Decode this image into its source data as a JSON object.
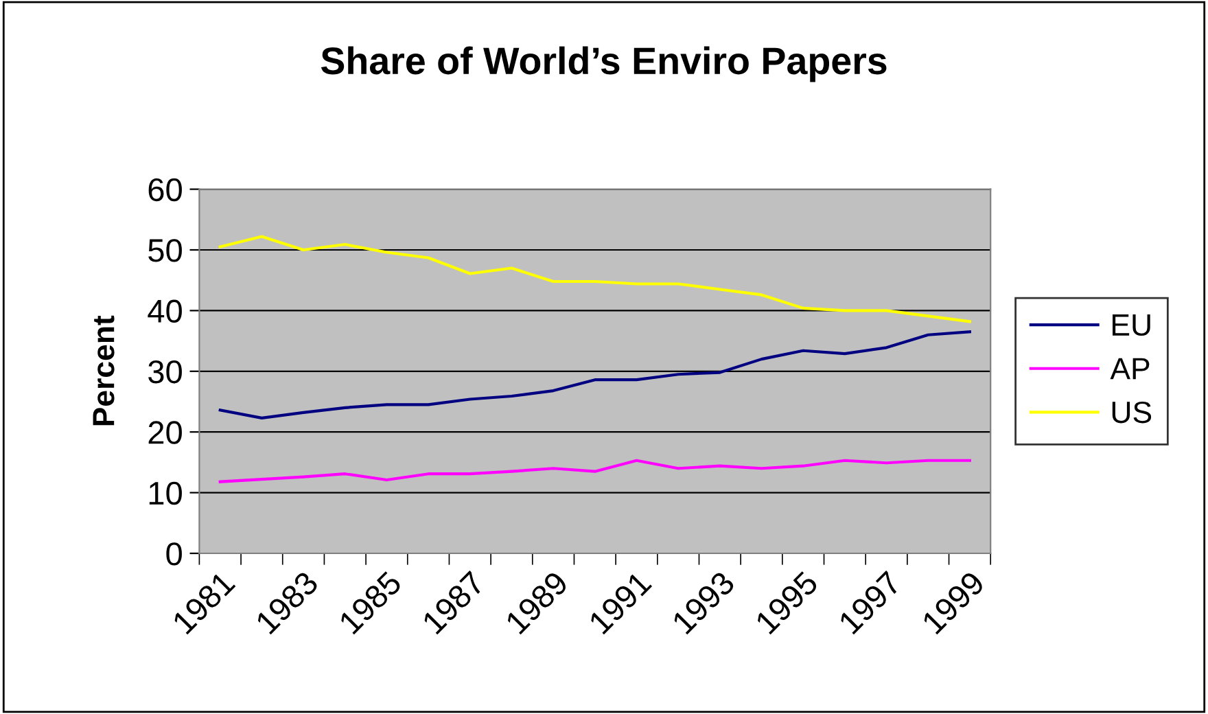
{
  "chart_data": {
    "type": "line",
    "title": "Share of World’s Enviro Papers",
    "ylabel": "Percent",
    "categories": [
      "1981",
      null,
      "1983",
      null,
      "1985",
      null,
      "1987",
      null,
      "1989",
      null,
      "1991",
      null,
      "1993",
      null,
      "1995",
      null,
      "1997",
      null,
      "1999"
    ],
    "series": [
      {
        "name": "EU",
        "color": "#000080",
        "values": [
          23.6,
          22.3,
          23.2,
          24.0,
          24.5,
          24.5,
          25.4,
          25.9,
          26.8,
          28.6,
          28.6,
          29.5,
          29.8,
          32.0,
          33.4,
          32.9,
          33.9,
          36.0,
          36.5
        ]
      },
      {
        "name": "AP",
        "color": "#ff00ff",
        "values": [
          11.8,
          12.2,
          12.6,
          13.1,
          12.1,
          13.1,
          13.1,
          13.5,
          14.0,
          13.5,
          15.3,
          14.0,
          14.4,
          14.0,
          14.4,
          15.3,
          14.9,
          15.3,
          15.3
        ]
      },
      {
        "name": "US",
        "color": "#ffff00",
        "values": [
          50.5,
          52.2,
          50.0,
          50.9,
          49.6,
          48.7,
          46.1,
          47.0,
          44.8,
          44.8,
          44.4,
          44.4,
          43.5,
          42.6,
          40.4,
          40.0,
          40.0,
          39.1,
          38.2
        ]
      }
    ],
    "ylim": [
      0,
      60
    ],
    "yticks": [
      0,
      10,
      20,
      30,
      40,
      50,
      60
    ],
    "grid": "y",
    "legend": "right",
    "marker": "none",
    "line_style": "solid"
  }
}
